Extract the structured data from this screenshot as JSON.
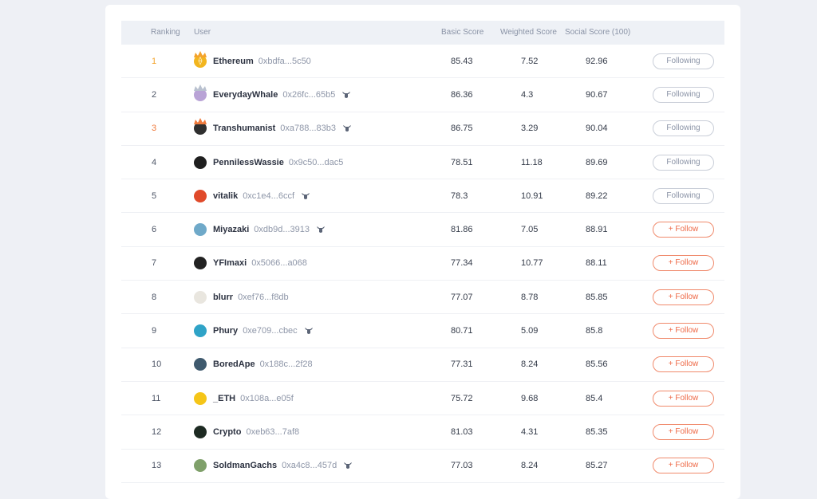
{
  "headers": {
    "ranking": "Ranking",
    "user": "User",
    "basic": "Basic Score",
    "weighted": "Weighted Score",
    "social": "Social Score (100)"
  },
  "colors": {
    "follow_accent": "#ee6a48",
    "rank_gold": "#f4a32b",
    "rank_bronze": "#ef7a3c"
  },
  "rows": [
    {
      "rank": "1",
      "name": "Ethereum",
      "addr": "0xbdfa...5c50",
      "basic": "85.43",
      "weighted": "7.52",
      "social": "92.96",
      "button": "Following",
      "avatar_color": "#f2b51f",
      "avatar_icon": "ethereum-coin-icon",
      "badge": false
    },
    {
      "rank": "2",
      "name": "EverydayWhale",
      "addr": "0x26fc...65b5",
      "basic": "86.36",
      "weighted": "4.3",
      "social": "90.67",
      "button": "Following",
      "avatar_color": "#b9a3d6",
      "avatar_icon": "avatar-icon",
      "badge": true
    },
    {
      "rank": "3",
      "name": "Transhumanist",
      "addr": "0xa788...83b3",
      "basic": "86.75",
      "weighted": "3.29",
      "social": "90.04",
      "button": "Following",
      "avatar_color": "#2f2f2f",
      "avatar_icon": "avatar-icon",
      "badge": true
    },
    {
      "rank": "4",
      "name": "PennilessWassie",
      "addr": "0x9c50...dac5",
      "basic": "78.51",
      "weighted": "11.18",
      "social": "89.69",
      "button": "Following",
      "avatar_color": "#1f1f1f",
      "avatar_icon": "avatar-icon",
      "badge": false
    },
    {
      "rank": "5",
      "name": "vitalik",
      "addr": "0xc1e4...6ccf",
      "basic": "78.3",
      "weighted": "10.91",
      "social": "89.22",
      "button": "Following",
      "avatar_color": "#e04a2a",
      "avatar_icon": "avatar-icon",
      "badge": true
    },
    {
      "rank": "6",
      "name": "Miyazaki",
      "addr": "0xdb9d...3913",
      "basic": "81.86",
      "weighted": "7.05",
      "social": "88.91",
      "button": "+ Follow",
      "avatar_color": "#6fa9c9",
      "avatar_icon": "avatar-icon",
      "badge": true
    },
    {
      "rank": "7",
      "name": "YFImaxi",
      "addr": "0x5066...a068",
      "basic": "77.34",
      "weighted": "10.77",
      "social": "88.11",
      "button": "+ Follow",
      "avatar_color": "#222222",
      "avatar_icon": "avatar-icon",
      "badge": false
    },
    {
      "rank": "8",
      "name": "blurr",
      "addr": "0xef76...f8db",
      "basic": "77.07",
      "weighted": "8.78",
      "social": "85.85",
      "button": "+ Follow",
      "avatar_color": "#e9e6df",
      "avatar_icon": "avatar-icon",
      "badge": false
    },
    {
      "rank": "9",
      "name": "Phury",
      "addr": "0xe709...cbec",
      "basic": "80.71",
      "weighted": "5.09",
      "social": "85.8",
      "button": "+ Follow",
      "avatar_color": "#2fa3c7",
      "avatar_icon": "avatar-icon",
      "badge": true
    },
    {
      "rank": "10",
      "name": "BoredApe",
      "addr": "0x188c...2f28",
      "basic": "77.31",
      "weighted": "8.24",
      "social": "85.56",
      "button": "+ Follow",
      "avatar_color": "#3f5a6e",
      "avatar_icon": "avatar-icon",
      "badge": false
    },
    {
      "rank": "11",
      "name": "_ETH",
      "addr": "0x108a...e05f",
      "basic": "75.72",
      "weighted": "9.68",
      "social": "85.4",
      "button": "+ Follow",
      "avatar_color": "#f5c518",
      "avatar_icon": "avatar-icon",
      "badge": false
    },
    {
      "rank": "12",
      "name": "Crypto",
      "addr": "0xeb63...7af8",
      "basic": "81.03",
      "weighted": "4.31",
      "social": "85.35",
      "button": "+ Follow",
      "avatar_color": "#1d2a22",
      "avatar_icon": "avatar-icon",
      "badge": false
    },
    {
      "rank": "13",
      "name": "SoldmanGachs",
      "addr": "0xa4c8...457d",
      "basic": "77.03",
      "weighted": "8.24",
      "social": "85.27",
      "button": "+ Follow",
      "avatar_color": "#7fa06a",
      "avatar_icon": "avatar-icon",
      "badge": true
    }
  ]
}
